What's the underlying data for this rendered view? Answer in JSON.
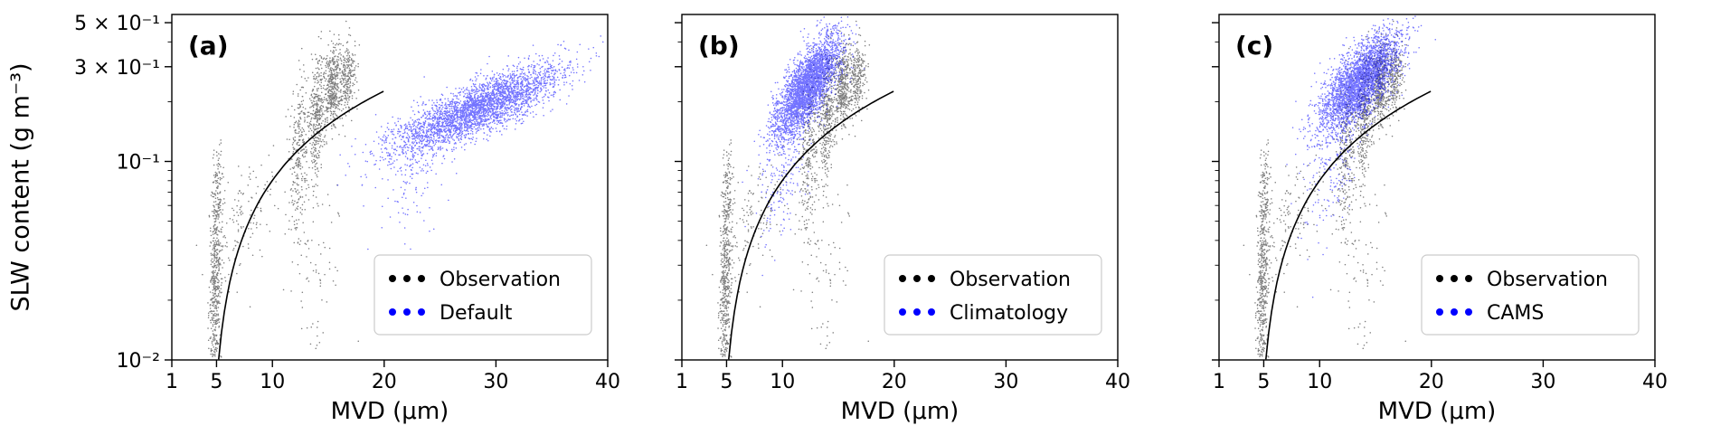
{
  "figure": {
    "ylabel": "SLW content (g m⁻³)",
    "xlabel": "MVD (μm)",
    "background": "#ffffff"
  },
  "chart_data": {
    "type": "scatter",
    "title": "",
    "xlabel": "MVD (μm)",
    "ylabel": "SLW content (g m⁻³)",
    "x_scale": "linear",
    "y_scale": "log",
    "x_range": [
      1,
      40
    ],
    "y_range": [
      0.01,
      0.55
    ],
    "x_ticks": [
      1,
      5,
      10,
      20,
      30,
      40
    ],
    "y_ticks": [
      {
        "value": 0.01,
        "label": "10⁻²"
      },
      {
        "value": 0.1,
        "label": "10⁻¹"
      },
      {
        "value": 0.3,
        "label": "3 × 10⁻¹"
      },
      {
        "value": 0.5,
        "label": "5 × 10⁻¹"
      }
    ],
    "y_minor_ticks": [
      0.02,
      0.03,
      0.04,
      0.05,
      0.06,
      0.07,
      0.08,
      0.09,
      0.2,
      0.4
    ],
    "grid": false,
    "legend_position": "lower right",
    "axis_color": "#000000",
    "legend_border_color": "#cccccc",
    "fit_curve": {
      "description": "black fit curve, SLW ≈ 0.0146 × (MVD − 4.5)",
      "slope": 0.0146,
      "x_offset": 4.5,
      "x_start": 5.19,
      "x_end": 20.0,
      "color": "#000000"
    },
    "observation": {
      "label": "Observation",
      "color": "#000000",
      "clusters": [
        {
          "x_mean": 4.9,
          "x_sd": 0.28,
          "logy_mean": -1.62,
          "logy_sd": 0.26,
          "corr": 0.25,
          "n": 520
        },
        {
          "x_mean": 5.1,
          "x_sd": 0.3,
          "logy_mean": -1.15,
          "logy_sd": 0.12,
          "corr": 0.2,
          "n": 90
        },
        {
          "x_mean": 7.6,
          "x_sd": 1.5,
          "logy_mean": -1.28,
          "logy_sd": 0.17,
          "corr": 0.55,
          "n": 130
        },
        {
          "x_mean": 12.4,
          "x_sd": 0.4,
          "logy_mean": -0.95,
          "logy_sd": 0.19,
          "corr": 0.2,
          "n": 270
        },
        {
          "x_mean": 14.0,
          "x_sd": 0.35,
          "logy_mean": -0.76,
          "logy_sd": 0.15,
          "corr": 0.2,
          "n": 340
        },
        {
          "x_mean": 15.4,
          "x_sd": 0.4,
          "logy_mean": -0.62,
          "logy_sd": 0.1,
          "corr": 0.15,
          "n": 420
        },
        {
          "x_mean": 16.7,
          "x_sd": 0.35,
          "logy_mean": -0.58,
          "logy_sd": 0.09,
          "corr": 0.15,
          "n": 240
        },
        {
          "x_mean": 13.8,
          "x_sd": 1.3,
          "logy_mean": -1.45,
          "logy_sd": 0.28,
          "corr": 0.1,
          "n": 100
        }
      ]
    },
    "panels": [
      {
        "id": "a",
        "panel_label": "(a)",
        "model": {
          "label": "Default",
          "color": "#0000ff",
          "clusters": [
            {
              "x_mean": 28.5,
              "x_sd": 3.8,
              "logy_mean": -0.73,
              "logy_sd": 0.11,
              "corr": 0.8,
              "n": 3200
            },
            {
              "x_mean": 23.0,
              "x_sd": 1.6,
              "logy_mean": -1.02,
              "logy_sd": 0.16,
              "corr": 0.4,
              "n": 180
            }
          ]
        }
      },
      {
        "id": "b",
        "panel_label": "(b)",
        "model": {
          "label": "Climatology",
          "color": "#0000ff",
          "clusters": [
            {
              "x_mean": 12.3,
              "x_sd": 1.5,
              "logy_mean": -0.62,
              "logy_sd": 0.13,
              "corr": 0.75,
              "n": 3200
            },
            {
              "x_mean": 10.2,
              "x_sd": 1.1,
              "logy_mean": -1.05,
              "logy_sd": 0.2,
              "corr": 0.5,
              "n": 220
            }
          ]
        }
      },
      {
        "id": "c",
        "panel_label": "(c)",
        "model": {
          "label": "CAMS",
          "color": "#0000ff",
          "clusters": [
            {
              "x_mean": 13.6,
              "x_sd": 1.8,
              "logy_mean": -0.6,
              "logy_sd": 0.12,
              "corr": 0.7,
              "n": 3200
            },
            {
              "x_mean": 11.3,
              "x_sd": 1.4,
              "logy_mean": -1.0,
              "logy_sd": 0.2,
              "corr": 0.5,
              "n": 220
            }
          ]
        }
      }
    ]
  }
}
